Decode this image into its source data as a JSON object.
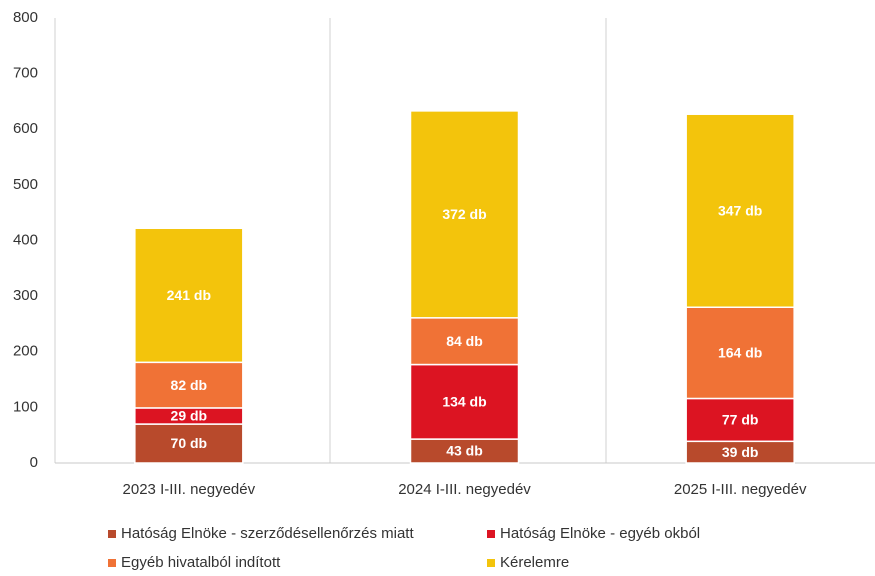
{
  "chart_data": {
    "type": "stacked_bar",
    "categories": [
      "2023 I-III. negyedév",
      "2024 I-III. negyedév",
      "2025 I-III. negyedév"
    ],
    "series": [
      {
        "name": "Hatóság Elnöke - szerződésellenőrzés miatt",
        "color": "#b84a2c",
        "values": [
          70,
          43,
          39
        ],
        "value_labels": [
          "70 db",
          "43 db",
          "39 db"
        ]
      },
      {
        "name": "Hatóság Elnöke - egyéb okból",
        "color": "#dc1422",
        "values": [
          29,
          134,
          77
        ],
        "value_labels": [
          "29 db",
          "134 db",
          "77 db"
        ]
      },
      {
        "name": "Egyéb hivatalból indított",
        "color": "#f07236",
        "values": [
          82,
          84,
          164
        ],
        "value_labels": [
          "82 db",
          "84 db",
          "164 db"
        ]
      },
      {
        "name": "Kérelemre",
        "color": "#f3c40c",
        "values": [
          241,
          372,
          347
        ],
        "value_labels": [
          "241 db",
          "372 db",
          "347 db"
        ]
      }
    ],
    "ylim": [
      0,
      800
    ],
    "yticks": [
      0,
      100,
      200,
      300,
      400,
      500,
      600,
      700,
      800
    ],
    "grid": false
  }
}
